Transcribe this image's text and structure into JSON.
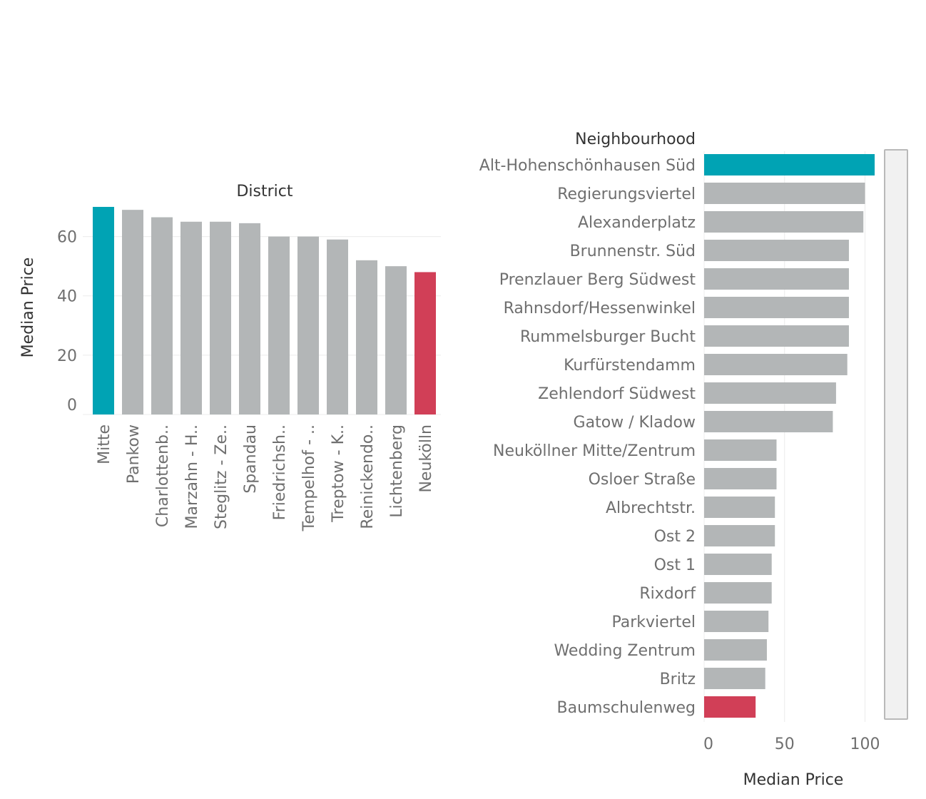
{
  "colors": {
    "highlight_high": "#00a3b4",
    "highlight_low": "#d13f57",
    "bar": "#b3b6b7",
    "scrollbar_bg": "#f1f1f1",
    "scrollbar_border": "#b9b9b9"
  },
  "chart_data": [
    {
      "type": "bar",
      "orientation": "vertical",
      "title": "District",
      "ylabel": "Median Price",
      "xlabel": "",
      "ylim": [
        0,
        70
      ],
      "yticks": [
        0,
        20,
        40,
        60
      ],
      "grid": true,
      "categories": [
        "Mitte",
        "Pankow",
        "Charlottenb..",
        "Marzahn - H..",
        "Steglitz - Ze..",
        "Spandau",
        "Friedrichsh..",
        "Tempelhof - ..",
        "Treptow - K..",
        "Reinickendo..",
        "Lichtenberg",
        "Neukölln"
      ],
      "values": [
        70,
        69,
        66.5,
        65,
        65,
        64.5,
        60,
        60,
        59,
        52,
        50,
        48
      ],
      "highlight": {
        "Mitte": "high",
        "Neukölln": "low"
      }
    },
    {
      "type": "bar",
      "orientation": "horizontal",
      "title": "Neighbourhood",
      "xlabel": "Median Price",
      "ylabel": "",
      "xlim": [
        0,
        110
      ],
      "xticks": [
        0,
        50,
        100
      ],
      "grid": true,
      "categories": [
        "Alt-Hohenschönhausen Süd",
        "Regierungsviertel",
        "Alexanderplatz",
        "Brunnenstr. Süd",
        "Prenzlauer Berg Südwest",
        "Rahnsdorf/Hessenwinkel",
        "Rummelsburger Bucht",
        "Kurfürstendamm",
        "Zehlendorf  Südwest",
        "Gatow / Kladow",
        "Neuköllner Mitte/Zentrum",
        "Osloer Straße",
        "Albrechtstr.",
        "Ost 2",
        "Ost 1",
        "Rixdorf",
        "Parkviertel",
        "Wedding Zentrum",
        "Britz",
        "Baumschulenweg"
      ],
      "values": [
        106,
        100,
        99,
        90,
        90,
        90,
        90,
        89,
        82,
        80,
        45,
        45,
        44,
        44,
        42,
        42,
        40,
        39,
        38,
        32
      ],
      "highlight": {
        "Alt-Hohenschönhausen Süd": "high",
        "Baumschulenweg": "low"
      }
    }
  ]
}
